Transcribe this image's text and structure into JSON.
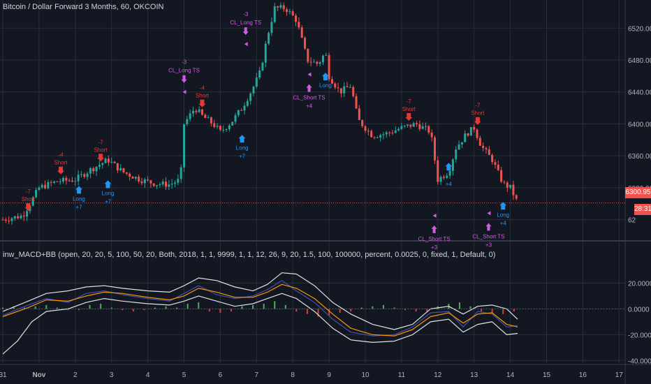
{
  "header": {
    "title": "Bitcoin / Dollar Forward 3 Months, 60, OKCOIN",
    "indicator": "inw_MACD+BB (open, 20, 20, 5, 100, 50, 20, Both, 2018, 1, 1, 9999, 1, 1, 12, 26, 9, 20, 1.5, 100, 100000, percent, 0.0025, 0, fixed, 1, Default, 0)"
  },
  "price_axis": {
    "ticks": [
      "6520.00",
      "6480.00",
      "6440.00",
      "6400.00",
      "6360.00",
      "6320.00",
      "62"
    ],
    "last_price": "6300.95",
    "countdown": "28:31"
  },
  "macd_axis": {
    "ticks": [
      "20.0000",
      "0.0000",
      "-20.0000",
      "-40.0000"
    ]
  },
  "time_axis": {
    "ticks": [
      "31",
      "Nov",
      "2",
      "3",
      "4",
      "5",
      "6",
      "7",
      "8",
      "9",
      "10",
      "11",
      "12",
      "13",
      "14",
      "15",
      "16",
      "17"
    ]
  },
  "colors": {
    "background": "#131722",
    "up": "#26a69a",
    "down": "#ef5350",
    "grid": "#2a2e39",
    "long": "#2196f3",
    "short": "#e53935",
    "close_trade": "#d05ce3",
    "macd": "#3f51b5",
    "signal": "#ff9800",
    "bands": "#dfe1e5"
  },
  "chart_data": [
    {
      "type": "candlestick",
      "title": "Bitcoin / Dollar Forward 3 Months, 60, OKCOIN",
      "x_ticks": [
        "31",
        "Nov",
        "2",
        "3",
        "4",
        "5",
        "6",
        "7",
        "8",
        "9",
        "10",
        "11",
        "12",
        "13",
        "14",
        "15",
        "16",
        "17"
      ],
      "ylim": [
        6270,
        6550
      ],
      "close_path": [
        {
          "day": 0.0,
          "close": 6280
        },
        {
          "day": 0.55,
          "close": 6285
        },
        {
          "day": 0.75,
          "close": 6300
        },
        {
          "day": 1.0,
          "close": 6320
        },
        {
          "day": 1.5,
          "close": 6328
        },
        {
          "day": 2.0,
          "close": 6330
        },
        {
          "day": 2.4,
          "close": 6342
        },
        {
          "day": 2.9,
          "close": 6355
        },
        {
          "day": 3.3,
          "close": 6340
        },
        {
          "day": 3.8,
          "close": 6330
        },
        {
          "day": 4.2,
          "close": 6325
        },
        {
          "day": 4.6,
          "close": 6324
        },
        {
          "day": 4.9,
          "close": 6330
        },
        {
          "day": 5.0,
          "close": 6400
        },
        {
          "day": 5.3,
          "close": 6420
        },
        {
          "day": 5.5,
          "close": 6410
        },
        {
          "day": 5.8,
          "close": 6400
        },
        {
          "day": 6.0,
          "close": 6390
        },
        {
          "day": 6.3,
          "close": 6402
        },
        {
          "day": 6.6,
          "close": 6420
        },
        {
          "day": 6.9,
          "close": 6445
        },
        {
          "day": 7.1,
          "close": 6465
        },
        {
          "day": 7.3,
          "close": 6510
        },
        {
          "day": 7.5,
          "close": 6545
        },
        {
          "day": 7.8,
          "close": 6545
        },
        {
          "day": 8.1,
          "close": 6530
        },
        {
          "day": 8.4,
          "close": 6480
        },
        {
          "day": 8.7,
          "close": 6475
        },
        {
          "day": 8.9,
          "close": 6490
        },
        {
          "day": 9.0,
          "close": 6460
        },
        {
          "day": 9.3,
          "close": 6440
        },
        {
          "day": 9.6,
          "close": 6448
        },
        {
          "day": 9.8,
          "close": 6405
        },
        {
          "day": 10.2,
          "close": 6385
        },
        {
          "day": 10.6,
          "close": 6388
        },
        {
          "day": 11.0,
          "close": 6395
        },
        {
          "day": 11.4,
          "close": 6400
        },
        {
          "day": 11.8,
          "close": 6390
        },
        {
          "day": 12.0,
          "close": 6330
        },
        {
          "day": 12.3,
          "close": 6340
        },
        {
          "day": 12.5,
          "close": 6370
        },
        {
          "day": 12.8,
          "close": 6388
        },
        {
          "day": 13.0,
          "close": 6395
        },
        {
          "day": 13.2,
          "close": 6372
        },
        {
          "day": 13.5,
          "close": 6355
        },
        {
          "day": 13.8,
          "close": 6325
        },
        {
          "day": 14.0,
          "close": 6320
        },
        {
          "day": 14.2,
          "close": 6301
        }
      ],
      "last_price": 6300.95,
      "annotations": [
        {
          "kind": "short",
          "label": "Short",
          "qty": "-7",
          "day": 0.7,
          "price": 6290
        },
        {
          "kind": "short",
          "label": "Short",
          "qty": "-4",
          "day": 1.6,
          "price": 6336
        },
        {
          "kind": "long",
          "label": "Long",
          "qty": "+7",
          "day": 2.1,
          "price": 6323
        },
        {
          "kind": "short",
          "label": "Short",
          "qty": "-7",
          "day": 2.7,
          "price": 6352
        },
        {
          "kind": "long",
          "label": "Long",
          "qty": "+7",
          "day": 2.9,
          "price": 6330
        },
        {
          "kind": "close",
          "label": "CL_Long TS",
          "qty": "-3",
          "day": 5.0,
          "price": 6440
        },
        {
          "kind": "short",
          "label": "Short",
          "qty": "-4",
          "day": 5.5,
          "price": 6420
        },
        {
          "kind": "long",
          "label": "Long",
          "qty": "+7",
          "day": 6.6,
          "price": 6387
        },
        {
          "kind": "close",
          "label": "CL_Long TS",
          "qty": "-3",
          "day": 6.7,
          "price": 6500
        },
        {
          "kind": "close",
          "label": "CL_Short TS",
          "qty": "+4",
          "day": 8.45,
          "price": 6462
        },
        {
          "kind": "long",
          "label": "Long",
          "qty": "",
          "day": 8.9,
          "price": 6465
        },
        {
          "kind": "short",
          "label": "Short",
          "qty": "-7",
          "day": 11.2,
          "price": 6403
        },
        {
          "kind": "close",
          "label": "CL_Short TS",
          "qty": "+3",
          "day": 11.9,
          "price": 6285
        },
        {
          "kind": "long",
          "label": "",
          "qty": "+4",
          "day": 12.3,
          "price": 6352
        },
        {
          "kind": "short",
          "label": "Short",
          "qty": "-7",
          "day": 13.1,
          "price": 6398
        },
        {
          "kind": "close",
          "label": "CL_Short TS",
          "qty": "+3",
          "day": 13.4,
          "price": 6288
        },
        {
          "kind": "long",
          "label": "Long",
          "qty": "+4",
          "day": 13.8,
          "price": 6303
        }
      ]
    },
    {
      "type": "line",
      "title": "inw_MACD+BB",
      "yticks": [
        "20.0000",
        "0.0000",
        "-20.0000",
        "-40.0000"
      ],
      "ylim": [
        -42,
        30
      ],
      "series": [
        {
          "values_day": [
            0,
            0.7,
            1.2,
            1.8,
            2.3,
            2.8,
            3.3,
            4,
            4.6,
            5,
            5.4,
            5.9,
            6.4,
            6.9,
            7.3,
            7.7,
            8.1,
            8.6,
            9.1,
            9.6,
            10.2,
            10.8,
            11.3,
            11.8,
            12.3,
            12.7,
            13.1,
            13.5,
            13.9,
            14.2
          ],
          "values": [
            -5,
            3,
            8,
            5,
            12,
            14,
            11,
            8,
            6,
            12,
            18,
            11,
            8,
            10,
            15,
            22,
            14,
            5,
            -8,
            -18,
            -21,
            -20,
            -14,
            -3,
            -2,
            -14,
            -2,
            -4,
            -14,
            -13
          ]
        },
        {
          "values_day": [
            0,
            0.7,
            1.2,
            1.8,
            2.3,
            2.8,
            3.3,
            4,
            4.6,
            5,
            5.4,
            5.9,
            6.4,
            6.9,
            7.3,
            7.7,
            8.1,
            8.6,
            9.1,
            9.6,
            10.2,
            10.8,
            11.3,
            11.8,
            12.3,
            12.7,
            13.1,
            13.5,
            13.9,
            14.2
          ],
          "values": [
            -6,
            1,
            7,
            6,
            10,
            13,
            12,
            9,
            7,
            10,
            16,
            13,
            9,
            9,
            13,
            19,
            16,
            8,
            -4,
            -15,
            -20,
            -21,
            -16,
            -6,
            -3,
            -11,
            -4,
            -3,
            -12,
            -14
          ]
        },
        {
          "values_day": [
            0,
            0.7,
            1.2,
            1.8,
            2.3,
            2.8,
            3.3,
            4,
            4.6,
            5,
            5.4,
            5.9,
            6.4,
            6.9,
            7.3,
            7.7,
            8.1,
            8.6,
            9.1,
            9.6,
            10.2,
            10.8,
            11.3,
            11.8,
            12.3,
            12.7,
            13.1,
            13.5,
            13.9,
            14.2
          ],
          "values": [
            -2,
            6,
            12,
            14,
            17,
            18,
            16,
            14,
            13,
            18,
            24,
            22,
            17,
            14,
            19,
            28,
            27,
            18,
            5,
            -4,
            -12,
            -16,
            -12,
            0,
            2,
            -4,
            2,
            3,
            0,
            -8
          ]
        },
        {
          "values_day": [
            0,
            0.4,
            0.8,
            1.2,
            1.8,
            2.3,
            2.8,
            3.3,
            4,
            4.6,
            5,
            5.4,
            5.9,
            6.4,
            6.9,
            7.3,
            7.7,
            8.1,
            8.6,
            9.1,
            9.6,
            10.2,
            10.8,
            11.3,
            11.8,
            12.3,
            12.7,
            13.1,
            13.5,
            13.9,
            14.2
          ],
          "values": [
            -35,
            -25,
            -10,
            -2,
            0,
            5,
            8,
            6,
            4,
            3,
            6,
            10,
            6,
            2,
            4,
            8,
            12,
            8,
            -2,
            -15,
            -24,
            -26,
            -25,
            -20,
            -10,
            -8,
            -18,
            -12,
            -10,
            -20,
            -19
          ]
        }
      ],
      "histogram_days": [
        0,
        0.3,
        0.6,
        0.9,
        1.2,
        1.5,
        1.8,
        2.1,
        2.4,
        2.7,
        3,
        3.3,
        3.6,
        3.9,
        4.2,
        4.5,
        4.8,
        5.1,
        5.4,
        5.7,
        6,
        6.3,
        6.6,
        6.9,
        7.2,
        7.5,
        7.8,
        8.1,
        8.4,
        8.7,
        9,
        9.3,
        9.6,
        9.9,
        10.2,
        10.5,
        10.8,
        11.1,
        11.4,
        11.7,
        12,
        12.3,
        12.6,
        12.9,
        13.2,
        13.5,
        13.8,
        14.1
      ],
      "histogram": [
        1,
        2,
        1,
        2,
        3,
        1,
        -1,
        -1,
        3,
        4,
        1,
        -1,
        -2,
        -1,
        1,
        2,
        1,
        4,
        5,
        -2,
        -3,
        -2,
        2,
        3,
        4,
        6,
        3,
        -2,
        -4,
        -6,
        -5,
        -3,
        -2,
        1,
        2,
        3,
        1,
        -1,
        -2,
        -2,
        2,
        4,
        5,
        2,
        -2,
        -3,
        -4,
        -2
      ]
    }
  ]
}
